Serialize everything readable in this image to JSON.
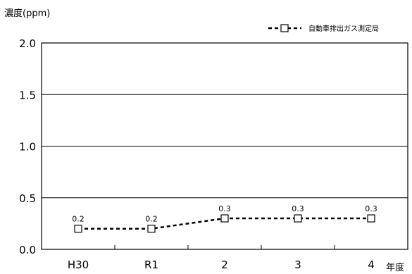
{
  "chart_data": {
    "type": "line",
    "ylabel": "濃度(ppm)",
    "xlabel": "年度",
    "categories": [
      "H30",
      "R1",
      "2",
      "3",
      "4"
    ],
    "y_ticks": [
      "0.0",
      "0.5",
      "1.0",
      "1.5",
      "2.0"
    ],
    "ylim": [
      0,
      2.0
    ],
    "grid": "horizontal",
    "legend_position": "top-right",
    "series": [
      {
        "name": "自動車排出ガス測定局",
        "values": [
          0.2,
          0.2,
          0.3,
          0.3,
          0.3
        ],
        "labels": [
          "0.2",
          "0.2",
          "0.3",
          "0.3",
          "0.3"
        ],
        "line_style": "dashed",
        "marker": "open-square",
        "color": "#000000"
      }
    ]
  }
}
